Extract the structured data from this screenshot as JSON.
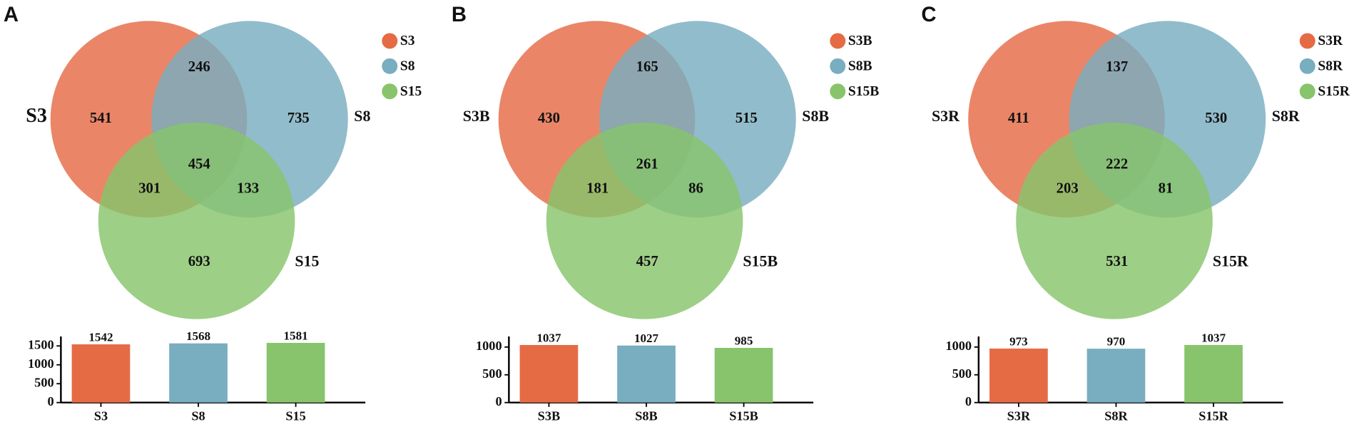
{
  "chart_data": [
    {
      "type": "venn",
      "panel": "A",
      "sets": [
        "S3",
        "S8",
        "S15"
      ],
      "colors": [
        "#e56b45",
        "#79adc0",
        "#88c46b"
      ],
      "values": [
        541,
        735,
        693,
        246,
        301,
        133,
        454
      ]
    },
    {
      "type": "bar",
      "categories": [
        "S3",
        "S8",
        "S15"
      ],
      "values": [
        1542,
        1568,
        1581
      ],
      "colors": [
        "#e56b45",
        "#79adc0",
        "#88c46b"
      ],
      "ylim": [
        0,
        1750
      ],
      "yticks": [
        0,
        500,
        1000,
        1500
      ]
    },
    {
      "type": "venn",
      "panel": "B",
      "sets": [
        "S3B",
        "S8B",
        "S15B"
      ],
      "colors": [
        "#e56b45",
        "#79adc0",
        "#88c46b"
      ],
      "values": [
        430,
        515,
        457,
        165,
        181,
        86,
        261
      ]
    },
    {
      "type": "bar",
      "categories": [
        "S3B",
        "S8B",
        "S15B"
      ],
      "values": [
        1037,
        1027,
        985
      ],
      "colors": [
        "#e56b45",
        "#79adc0",
        "#88c46b"
      ],
      "ylim": [
        0,
        1190
      ],
      "yticks": [
        0,
        500,
        1000
      ]
    },
    {
      "type": "venn",
      "panel": "C",
      "sets": [
        "S3R",
        "S8R",
        "S15R"
      ],
      "colors": [
        "#e56b45",
        "#79adc0",
        "#88c46b"
      ],
      "values": [
        411,
        530,
        531,
        137,
        203,
        81,
        222
      ]
    },
    {
      "type": "bar",
      "categories": [
        "S3R",
        "S8R",
        "S15R"
      ],
      "values": [
        973,
        970,
        1037
      ],
      "colors": [
        "#e56b45",
        "#79adc0",
        "#88c46b"
      ],
      "ylim": [
        0,
        1190
      ],
      "yticks": [
        0,
        500,
        1000
      ]
    }
  ]
}
